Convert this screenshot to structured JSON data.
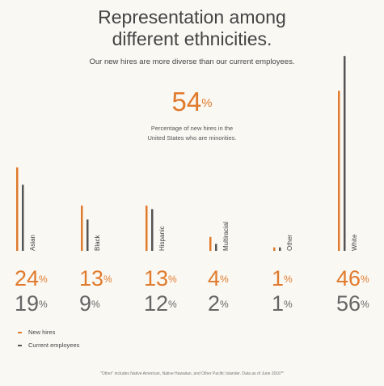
{
  "title_line1": "Representation among",
  "title_line2": "different ethnicities.",
  "subtitle": "Our new hires are more diverse than our current employees.",
  "headline_stat": {
    "value": "54",
    "unit": "%",
    "desc_line1": "Percentage of new hires in the",
    "desc_line2": "United States who are minorities."
  },
  "legend": {
    "new": "New hires",
    "current": "Current employees"
  },
  "footnote": "\"Other\" includes Native American, Native Hawaiian, and Other Pacific Islander. Data as of June 2016**",
  "colors": {
    "new": "#e07a2c",
    "current": "#555555"
  },
  "chart_data": {
    "type": "bar",
    "categories": [
      "Asian",
      "Black",
      "Hispanic",
      "Multiracial",
      "Other",
      "White"
    ],
    "series": [
      {
        "name": "New hires",
        "values": [
          24,
          13,
          13,
          4,
          1,
          46
        ],
        "display": [
          "24",
          "13",
          "13",
          "4",
          "1",
          "46"
        ]
      },
      {
        "name": "Current employees",
        "values": [
          19,
          9,
          12,
          2,
          1,
          56
        ],
        "display": [
          "19",
          "9",
          "12",
          "2",
          "1",
          "56"
        ]
      }
    ],
    "unit": "%",
    "legend_position": "bottom-left",
    "grid": false
  }
}
